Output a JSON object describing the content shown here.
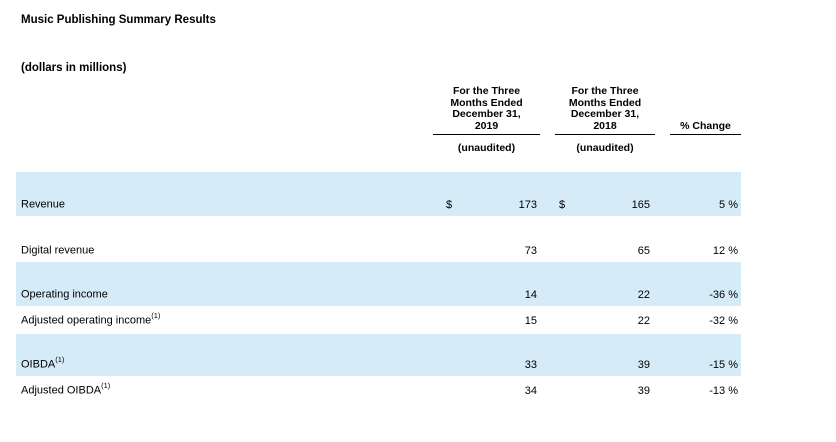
{
  "page": {
    "title": "Music Publishing Summary Results",
    "subtitle": "(dollars in millions)"
  },
  "table": {
    "header": {
      "col_2019_lines": [
        "For the Three",
        "Months Ended",
        "December 31,",
        "2019"
      ],
      "col_2018_lines": [
        "For the Three",
        "Months Ended",
        "December 31,",
        "2018"
      ],
      "pct_change_label": "% Change",
      "unaudited_2019": "(unaudited)",
      "unaudited_2018": "(unaudited)"
    },
    "rows": [
      {
        "label": "Revenue",
        "sup": "",
        "cur_2019": "$",
        "val_2019": "173",
        "cur_2018": "$",
        "val_2018": "165",
        "change": "5 %"
      },
      {
        "label": "Digital revenue",
        "sup": "",
        "cur_2019": "",
        "val_2019": "73",
        "cur_2018": "",
        "val_2018": "65",
        "change": "12 %"
      },
      {
        "label": "Operating income",
        "sup": "",
        "cur_2019": "",
        "val_2019": "14",
        "cur_2018": "",
        "val_2018": "22",
        "change": "-36 %"
      },
      {
        "label": "Adjusted operating income",
        "sup": "(1)",
        "cur_2019": "",
        "val_2019": "15",
        "cur_2018": "",
        "val_2018": "22",
        "change": "-32 %"
      },
      {
        "label": "OIBDA",
        "sup": "(1)",
        "cur_2019": "",
        "val_2019": "33",
        "cur_2018": "",
        "val_2018": "39",
        "change": "-15 %"
      },
      {
        "label": "Adjusted OIBDA",
        "sup": "(1)",
        "cur_2019": "",
        "val_2019": "34",
        "cur_2018": "",
        "val_2018": "39",
        "change": "-13 %"
      }
    ],
    "colors": {
      "band_blue": "#d6ebf8"
    }
  }
}
